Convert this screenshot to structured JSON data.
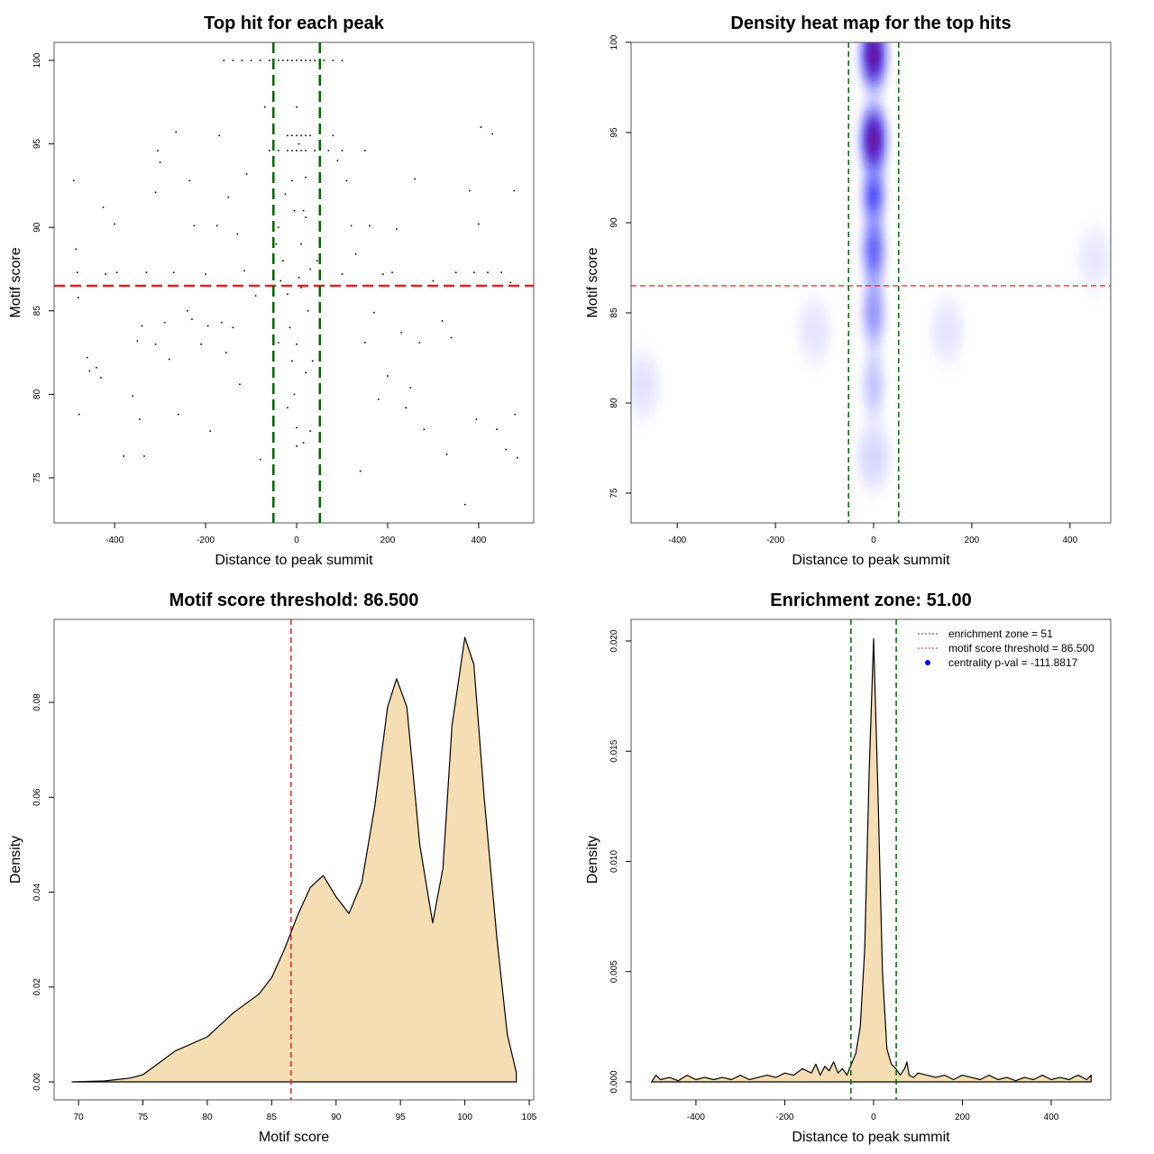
{
  "chart_data": [
    {
      "type": "scatter",
      "title": "Top hit for each peak",
      "xlabel": "Distance to peak summit",
      "ylabel": "Motif score",
      "xlim": [
        -533,
        521
      ],
      "ylim": [
        72.3,
        101.08
      ],
      "xticks": [
        -400,
        -200,
        0,
        200,
        400
      ],
      "yticks": [
        75,
        80,
        85,
        90,
        95,
        100
      ],
      "hlines": [
        {
          "y": 86.5,
          "color": "#dd2222"
        }
      ],
      "vlines": [
        {
          "x": -51,
          "color": "#006400"
        },
        {
          "x": 51,
          "color": "#006400"
        }
      ],
      "points": [
        [
          -160,
          100
        ],
        [
          -140,
          100
        ],
        [
          -120,
          100
        ],
        [
          -100,
          100
        ],
        [
          -80,
          100
        ],
        [
          -60,
          100
        ],
        [
          -40,
          100
        ],
        [
          -30,
          100
        ],
        [
          -20,
          100
        ],
        [
          -10,
          100
        ],
        [
          0,
          100
        ],
        [
          10,
          100
        ],
        [
          20,
          100
        ],
        [
          30,
          100
        ],
        [
          40,
          100
        ],
        [
          60,
          100
        ],
        [
          80,
          100
        ],
        [
          100,
          100
        ],
        [
          -20,
          95.5
        ],
        [
          -10,
          95.5
        ],
        [
          0,
          95.5
        ],
        [
          10,
          95.5
        ],
        [
          20,
          95.5
        ],
        [
          30,
          95.5
        ],
        [
          -60,
          94.6
        ],
        [
          -40,
          94.6
        ],
        [
          -20,
          94.6
        ],
        [
          -10,
          94.6
        ],
        [
          0,
          94.6
        ],
        [
          10,
          94.6
        ],
        [
          20,
          94.6
        ],
        [
          40,
          94.6
        ],
        [
          70,
          94.6
        ],
        [
          100,
          94.6
        ],
        [
          150,
          94.6
        ],
        [
          -490,
          92.8
        ],
        [
          -485,
          88.7
        ],
        [
          -482,
          87.3
        ],
        [
          -480,
          85.8
        ],
        [
          -478,
          78.8
        ],
        [
          -460,
          82.2
        ],
        [
          -455,
          81.4
        ],
        [
          -440,
          81.6
        ],
        [
          -430,
          81
        ],
        [
          -425,
          91.2
        ],
        [
          -420,
          87.2
        ],
        [
          -400,
          90.2
        ],
        [
          -395,
          87.3
        ],
        [
          -380,
          76.3
        ],
        [
          -360,
          79.9
        ],
        [
          -350,
          83.2
        ],
        [
          -345,
          78.5
        ],
        [
          -340,
          84.1
        ],
        [
          -335,
          76.3
        ],
        [
          -330,
          87.3
        ],
        [
          -310,
          83
        ],
        [
          -310,
          92.1
        ],
        [
          -305,
          94.6
        ],
        [
          -300,
          93.9
        ],
        [
          -290,
          84.3
        ],
        [
          -280,
          82.1
        ],
        [
          -270,
          87.3
        ],
        [
          -265,
          95.7
        ],
        [
          -260,
          78.8
        ],
        [
          -240,
          85
        ],
        [
          -235,
          92.8
        ],
        [
          -230,
          84.5
        ],
        [
          -225,
          90.1
        ],
        [
          -210,
          83
        ],
        [
          -200,
          87.2
        ],
        [
          -195,
          84.1
        ],
        [
          -190,
          77.8
        ],
        [
          -175,
          90.1
        ],
        [
          -170,
          95.5
        ],
        [
          -165,
          84.3
        ],
        [
          -155,
          82.5
        ],
        [
          -150,
          91.8
        ],
        [
          -140,
          84
        ],
        [
          -130,
          89.6
        ],
        [
          -125,
          80.6
        ],
        [
          -115,
          87.4
        ],
        [
          -110,
          93.2
        ],
        [
          -90,
          85.9
        ],
        [
          -80,
          76.1
        ],
        [
          -70,
          97.2
        ],
        [
          -40,
          90
        ],
        [
          -30,
          88
        ],
        [
          -20,
          86
        ],
        [
          -15,
          84
        ],
        [
          -10,
          82
        ],
        [
          -5,
          80
        ],
        [
          0,
          83
        ],
        [
          5,
          87
        ],
        [
          10,
          89
        ],
        [
          15,
          91
        ],
        [
          20,
          93
        ],
        [
          25,
          85
        ],
        [
          -25,
          92
        ],
        [
          -35,
          86.8
        ],
        [
          30,
          87.5
        ],
        [
          0,
          78
        ],
        [
          -10,
          92.8
        ],
        [
          10,
          86.4
        ],
        [
          20,
          81.3
        ],
        [
          -20,
          79.2
        ],
        [
          35,
          82
        ],
        [
          -45,
          89
        ],
        [
          45,
          88
        ],
        [
          0,
          97.2
        ],
        [
          5,
          95
        ],
        [
          -5,
          91
        ],
        [
          15,
          77.1
        ],
        [
          30,
          77.8
        ],
        [
          -40,
          83.1
        ],
        [
          0,
          76.9
        ],
        [
          20,
          90.6
        ],
        [
          80,
          95.5
        ],
        [
          90,
          94
        ],
        [
          100,
          87.2
        ],
        [
          110,
          92.8
        ],
        [
          120,
          90.1
        ],
        [
          130,
          88.4
        ],
        [
          140,
          75.4
        ],
        [
          150,
          83.1
        ],
        [
          160,
          90.1
        ],
        [
          170,
          84.9
        ],
        [
          180,
          79.7
        ],
        [
          190,
          87.2
        ],
        [
          200,
          81.1
        ],
        [
          210,
          87.3
        ],
        [
          220,
          89.9
        ],
        [
          230,
          83.7
        ],
        [
          240,
          79.2
        ],
        [
          250,
          80.4
        ],
        [
          260,
          92.9
        ],
        [
          270,
          83.1
        ],
        [
          280,
          77.9
        ],
        [
          300,
          86.8
        ],
        [
          320,
          84.4
        ],
        [
          330,
          76.4
        ],
        [
          340,
          83.4
        ],
        [
          350,
          87.3
        ],
        [
          370,
          73.4
        ],
        [
          380,
          92.2
        ],
        [
          390,
          87.3
        ],
        [
          395,
          78.5
        ],
        [
          400,
          90.2
        ],
        [
          405,
          96
        ],
        [
          420,
          87.3
        ],
        [
          430,
          95.6
        ],
        [
          440,
          77.9
        ],
        [
          450,
          87.3
        ],
        [
          460,
          76.7
        ],
        [
          470,
          86.7
        ],
        [
          478,
          92.2
        ],
        [
          480,
          78.8
        ],
        [
          485,
          76.2
        ]
      ]
    },
    {
      "type": "heatmap",
      "title": "Density heat map for the top hits",
      "xlabel": "Distance to peak summit",
      "ylabel": "Motif score",
      "xlim": [
        -494,
        483
      ],
      "ylim": [
        73.35,
        100
      ],
      "xticks": [
        -400,
        -200,
        0,
        200,
        400
      ],
      "yticks": [
        75,
        80,
        85,
        90,
        95,
        100
      ],
      "hlines": [
        {
          "y": 86.5,
          "color": "#dd2222"
        }
      ],
      "vlines": [
        {
          "x": -51,
          "color": "#006400"
        },
        {
          "x": 51,
          "color": "#006400"
        }
      ],
      "hotspots": [
        {
          "x": 0,
          "y": 99.3,
          "level": 1.0
        },
        {
          "x": 0,
          "y": 94.6,
          "level": 0.95
        },
        {
          "x": 0,
          "y": 91.5,
          "level": 0.6
        },
        {
          "x": 0,
          "y": 88.5,
          "level": 0.45
        },
        {
          "x": 0,
          "y": 85,
          "level": 0.3
        },
        {
          "x": 0,
          "y": 81,
          "level": 0.15
        },
        {
          "x": 0,
          "y": 77,
          "level": 0.08
        },
        {
          "x": -470,
          "y": 81,
          "level": 0.05
        },
        {
          "x": -120,
          "y": 84,
          "level": 0.04
        },
        {
          "x": 150,
          "y": 84,
          "level": 0.04
        },
        {
          "x": 450,
          "y": 88,
          "level": 0.03
        }
      ]
    },
    {
      "type": "area",
      "title": "Motif score threshold: 86.500",
      "xlabel": "Motif score",
      "ylabel": "Density",
      "xlim": [
        68.1,
        105.35
      ],
      "ylim": [
        -0.0038,
        0.0975
      ],
      "xticks": [
        70,
        75,
        80,
        85,
        90,
        95,
        100,
        105
      ],
      "yticks": [
        0.0,
        0.02,
        0.04,
        0.06,
        0.08
      ],
      "ytick_labels": [
        "0.00",
        "0.02",
        "0.04",
        "0.06",
        "0.08"
      ],
      "fill": "#f5deb3",
      "vlines": [
        {
          "x": 86.5,
          "color": "#dd2222"
        }
      ],
      "x": [
        69.5,
        72,
        74,
        75,
        76,
        77.5,
        80,
        82,
        84,
        85,
        86,
        87,
        88,
        89,
        90,
        91,
        92,
        93,
        94,
        94.7,
        95.5,
        96.5,
        97.5,
        98.3,
        99,
        100,
        100.7,
        101.5,
        102.5,
        103.3,
        104,
        104
      ],
      "y": [
        0,
        0.0002,
        0.0008,
        0.0015,
        0.0035,
        0.0065,
        0.0095,
        0.0145,
        0.0185,
        0.022,
        0.028,
        0.035,
        0.041,
        0.0435,
        0.039,
        0.0355,
        0.042,
        0.058,
        0.079,
        0.085,
        0.079,
        0.05,
        0.0335,
        0.045,
        0.075,
        0.0937,
        0.088,
        0.06,
        0.03,
        0.01,
        0.002,
        0
      ]
    },
    {
      "type": "area",
      "title": "Enrichment zone: 51.00",
      "xlabel": "Distance to peak summit",
      "ylabel": "Density",
      "xlim": [
        -546,
        534
      ],
      "ylim": [
        -0.00082,
        0.02098
      ],
      "xticks": [
        -400,
        -200,
        0,
        200,
        400
      ],
      "yticks": [
        0.0,
        0.005,
        0.01,
        0.015,
        0.02
      ],
      "ytick_labels": [
        "0.000",
        "0.005",
        "0.010",
        "0.015",
        "0.020"
      ],
      "fill": "#f5deb3",
      "vlines": [
        {
          "x": -51,
          "color": "#006400"
        },
        {
          "x": 51,
          "color": "#006400"
        }
      ],
      "x": [
        -500,
        -490,
        -480,
        -460,
        -440,
        -420,
        -400,
        -380,
        -360,
        -340,
        -320,
        -300,
        -280,
        -260,
        -240,
        -220,
        -200,
        -180,
        -160,
        -140,
        -130,
        -120,
        -110,
        -100,
        -90,
        -80,
        -70,
        -60,
        -50,
        -40,
        -30,
        -20,
        -10,
        0,
        10,
        20,
        30,
        40,
        50,
        60,
        70,
        75,
        80,
        90,
        100,
        120,
        140,
        160,
        180,
        200,
        220,
        240,
        260,
        280,
        300,
        320,
        340,
        360,
        380,
        400,
        420,
        440,
        460,
        480,
        490,
        490
      ],
      "y": [
        0,
        0.0003,
        0.0001,
        0.0002,
        5e-05,
        0.0003,
        0.0001,
        0.0002,
        0.0001,
        0.0002,
        0.0001,
        0.0003,
        0.0001,
        0.0002,
        0.0003,
        0.0002,
        0.0004,
        0.0003,
        0.0006,
        0.0004,
        0.0008,
        0.0003,
        0.0007,
        0.0005,
        0.0009,
        0.0004,
        0.0006,
        0.0003,
        0.0008,
        0.0013,
        0.0025,
        0.006,
        0.014,
        0.0201,
        0.013,
        0.005,
        0.0015,
        0.0008,
        0.0006,
        0.0003,
        0.0006,
        0.0009,
        0.0003,
        0.0002,
        0.0004,
        0.0003,
        0.0002,
        0.0003,
        0.0001,
        0.0003,
        0.0002,
        0.0001,
        0.0003,
        0.0001,
        0.0002,
        5e-05,
        0.0002,
        0.0001,
        0.0003,
        0.0001,
        0.0002,
        0.0001,
        0.0003,
        0.0001,
        0.0003,
        0
      ],
      "legend": {
        "placement": "top-right",
        "items": [
          {
            "label": "enrichment zone = 51",
            "color": "#006400",
            "symbol": "dotted-line"
          },
          {
            "label": "motif score threshold = 86.500",
            "color": "#dd2222",
            "symbol": "dotted-line"
          },
          {
            "label": "centrality p-val = -111.8817",
            "color": "#0000ff",
            "symbol": "dot"
          }
        ]
      }
    }
  ]
}
